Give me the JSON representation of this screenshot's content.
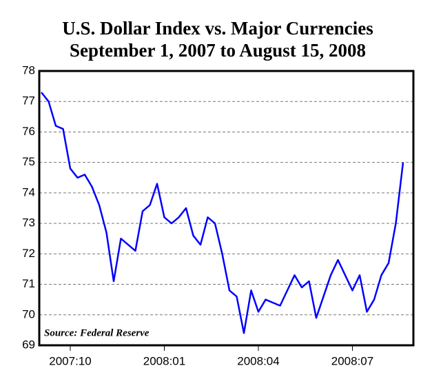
{
  "chart_data": {
    "type": "line",
    "title": "U.S. Dollar Index vs. Major Currencies",
    "subtitle": "September 1, 2007 to August 15, 2008",
    "annotation": "Source: Federal Reserve",
    "categories": [
      null,
      null,
      null,
      null,
      "2007:10",
      null,
      null,
      null,
      null,
      null,
      null,
      null,
      null,
      null,
      null,
      null,
      null,
      "2008:01",
      null,
      null,
      null,
      null,
      null,
      null,
      null,
      null,
      null,
      null,
      null,
      null,
      "2008:04",
      null,
      null,
      null,
      null,
      null,
      null,
      null,
      null,
      null,
      null,
      null,
      null,
      "2008:07",
      null,
      null,
      null,
      null,
      null,
      null,
      null
    ],
    "series": [
      {
        "name": "U.S. Dollar Index",
        "color": "#0000ff",
        "values": [
          77.3,
          77.0,
          76.2,
          76.1,
          74.8,
          74.5,
          74.6,
          74.2,
          73.6,
          72.7,
          71.1,
          72.5,
          72.3,
          72.1,
          73.4,
          73.6,
          74.3,
          73.2,
          73.0,
          73.2,
          73.5,
          72.6,
          72.3,
          73.2,
          73.0,
          72.0,
          70.8,
          70.6,
          69.4,
          70.8,
          70.1,
          70.5,
          70.4,
          70.3,
          70.8,
          71.3,
          70.9,
          71.1,
          69.9,
          70.6,
          71.3,
          71.8,
          71.3,
          70.8,
          71.3,
          70.1,
          70.5,
          71.3,
          71.7,
          73.0,
          75.0
        ]
      }
    ],
    "ylim": [
      69,
      78
    ],
    "yticks": [
      69,
      70,
      71,
      72,
      73,
      74,
      75,
      76,
      77,
      78
    ],
    "grid": true
  }
}
